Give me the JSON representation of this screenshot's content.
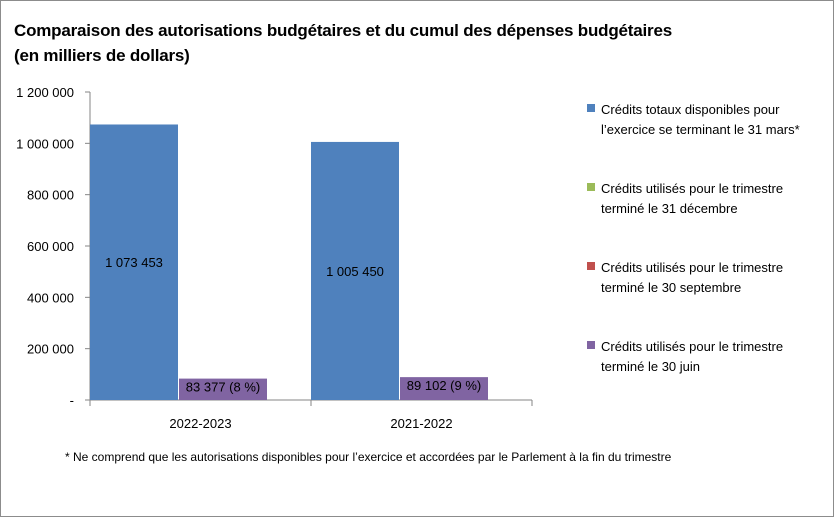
{
  "chart_data": {
    "type": "bar",
    "title_lines": [
      "Comparaison des autorisations budgétaires et du cumul des dépenses budgétaires",
      "(en milliers de dollars)"
    ],
    "categories": [
      "2022-2023",
      "2021-2022"
    ],
    "y_ticks": [
      "1 200 000",
      "1 000 000",
      "800 000",
      "600 000",
      "400 000",
      "200 000",
      "-"
    ],
    "ylim": [
      0,
      1200000
    ],
    "grid": false,
    "legend_position": "right",
    "series": [
      {
        "name": "Crédits totaux disponibles pour l’exercice se terminant le 31 mars*",
        "color": "#4f81bd",
        "values": [
          1073453,
          1005450
        ],
        "labels": [
          "1 073 453",
          "1 005 450"
        ]
      },
      {
        "name": "Crédits utilisés pour le trimestre terminé le 31 décembre",
        "color": "#9bbb59",
        "values": [
          0,
          0
        ],
        "labels": [
          "",
          ""
        ]
      },
      {
        "name": "Crédits utilisés pour le trimestre terminé le 30 septembre",
        "color": "#c0504d",
        "values": [
          0,
          0
        ],
        "labels": [
          "",
          ""
        ]
      },
      {
        "name": "Crédits utilisés pour le trimestre terminé le 30 juin",
        "color": "#8064a2",
        "values": [
          83377,
          89102
        ],
        "labels": [
          "83 377 (8 %)",
          "89 102 (9 %)"
        ]
      }
    ],
    "footnote": "*  Ne comprend  que les autorisations disponibles pour l’exercice et accordées par le Parlement à la fin du trimestre"
  }
}
